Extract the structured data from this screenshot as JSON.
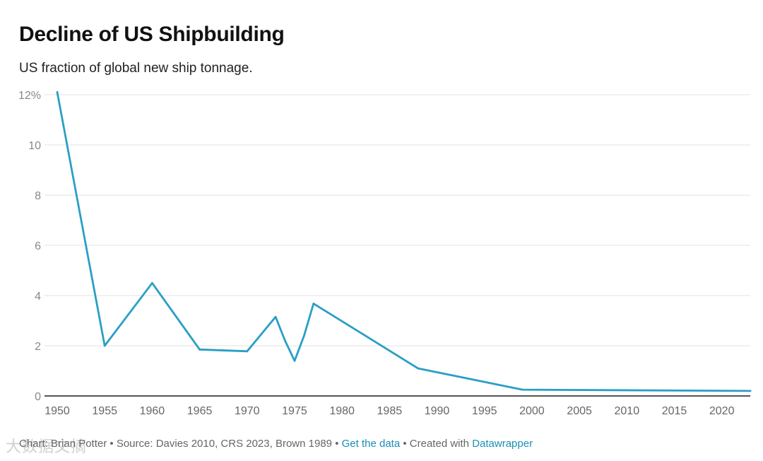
{
  "colors": {
    "line": "#2a9fc4",
    "grid": "#e3e3e3",
    "axis": "#1d1d1d",
    "tick": "#888888",
    "link": "#1a8fb5"
  },
  "header": {
    "title": "Decline of US Shipbuilding",
    "subtitle": "US fraction of global new ship tonnage."
  },
  "footer": {
    "chart_by": "Chart: Brian Potter",
    "source": "Source: Davies 2010, CRS 2023, Brown 1989",
    "sep": "•",
    "get_data": "Get the data",
    "created_with": "Created with",
    "tool": "Datawrapper"
  },
  "watermark": "大数据文摘",
  "chart_data": {
    "type": "line",
    "title": "Decline of US Shipbuilding",
    "subtitle": "US fraction of global new ship tonnage.",
    "xlabel": "",
    "ylabel": "",
    "xlim": [
      1950,
      2023
    ],
    "ylim": [
      0,
      12
    ],
    "x_ticks": [
      1950,
      1955,
      1960,
      1965,
      1970,
      1975,
      1980,
      1985,
      1990,
      1995,
      2000,
      2005,
      2010,
      2015,
      2020
    ],
    "y_ticks": [
      0,
      2,
      4,
      6,
      8,
      10,
      12
    ],
    "y_tick_labels": [
      "0",
      "2",
      "4",
      "6",
      "8",
      "10",
      "12%"
    ],
    "grid": true,
    "series": [
      {
        "name": "US fraction of global new ship tonnage",
        "x": [
          1950,
          1955,
          1960,
          1965,
          1970,
          1973,
          1974,
          1975,
          1976,
          1977,
          1988,
          1999,
          2023
        ],
        "values": [
          12.1,
          2.0,
          4.5,
          1.85,
          1.78,
          3.15,
          2.2,
          1.4,
          2.4,
          3.68,
          1.1,
          0.25,
          0.2
        ]
      }
    ]
  }
}
